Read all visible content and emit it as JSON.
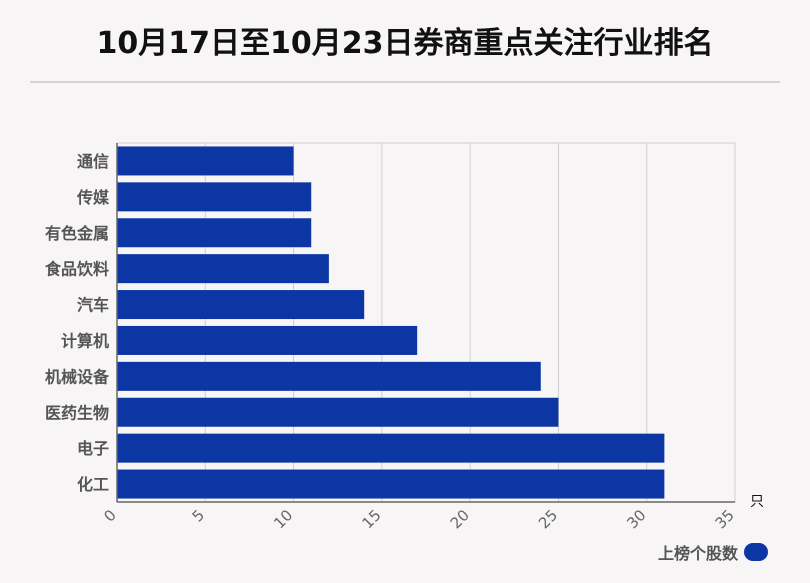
{
  "title": "10月17日至10月23日券商重点关注行业排名",
  "chart_data": {
    "type": "bar",
    "orientation": "horizontal",
    "categories": [
      "通信",
      "传媒",
      "有色金属",
      "食品饮料",
      "汽车",
      "计算机",
      "机械设备",
      "医药生物",
      "电子",
      "化工"
    ],
    "series": [
      {
        "name": "上榜个股数",
        "values": [
          10,
          11,
          11,
          12,
          14,
          17,
          24,
          25,
          31,
          31
        ],
        "color": "#0b36a3"
      }
    ],
    "xlim": [
      0,
      35
    ],
    "xticks": [
      "0",
      "5",
      "10",
      "15",
      "20",
      "25",
      "30",
      "35"
    ],
    "xunit": "只",
    "grid": true,
    "legend_position": "bottom-right"
  }
}
